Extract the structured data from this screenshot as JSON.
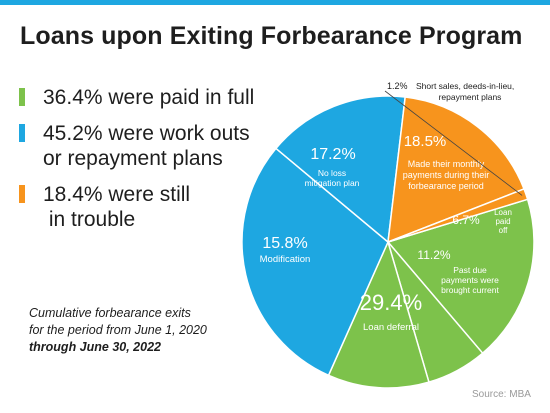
{
  "title": "Loans upon Exiting Forbearance Program",
  "legend": [
    {
      "lines": [
        "36.4% were paid in full"
      ],
      "color": "#7dc24b"
    },
    {
      "lines": [
        "45.2% were work outs",
        "or repayment plans"
      ],
      "color": "#1ea7e1"
    },
    {
      "lines": [
        "18.4% were still",
        " in trouble"
      ],
      "color": "#f7941d"
    }
  ],
  "note": {
    "line1": "Cumulative forbearance exits",
    "line2": "for the period from June 1, 2020",
    "line3": "through June 30, 2022"
  },
  "source": "Source: MBA",
  "chart_data": {
    "type": "pie",
    "title": "Loans upon Exiting Forbearance Program",
    "slices": [
      {
        "pct_label": "18.5%",
        "value": 18.5,
        "desc": [
          "Made their monthly",
          "payments during their",
          "forbearance period"
        ],
        "color": "#7dc24b"
      },
      {
        "pct_label": "6.7%",
        "value": 6.7,
        "desc": [
          "Loan",
          "paid",
          "off"
        ],
        "color": "#7dc24b"
      },
      {
        "pct_label": "11.2%",
        "value": 11.2,
        "desc": [
          "Past due",
          "payments were",
          "brought current"
        ],
        "color": "#7dc24b"
      },
      {
        "pct_label": "29.4%",
        "value": 29.4,
        "desc": [
          "Loan deferral"
        ],
        "color": "#1ea7e1"
      },
      {
        "pct_label": "15.8%",
        "value": 15.8,
        "desc": [
          "Modification"
        ],
        "color": "#1ea7e1"
      },
      {
        "pct_label": "17.2%",
        "value": 17.2,
        "desc": [
          "No loss",
          "mitigation plan"
        ],
        "color": "#f7941d"
      },
      {
        "pct_label": "1.2%",
        "value": 1.2,
        "desc": [
          "Short sales, deeds-in-lieu,",
          "repayment plans"
        ],
        "color": "#f7941d"
      }
    ]
  }
}
